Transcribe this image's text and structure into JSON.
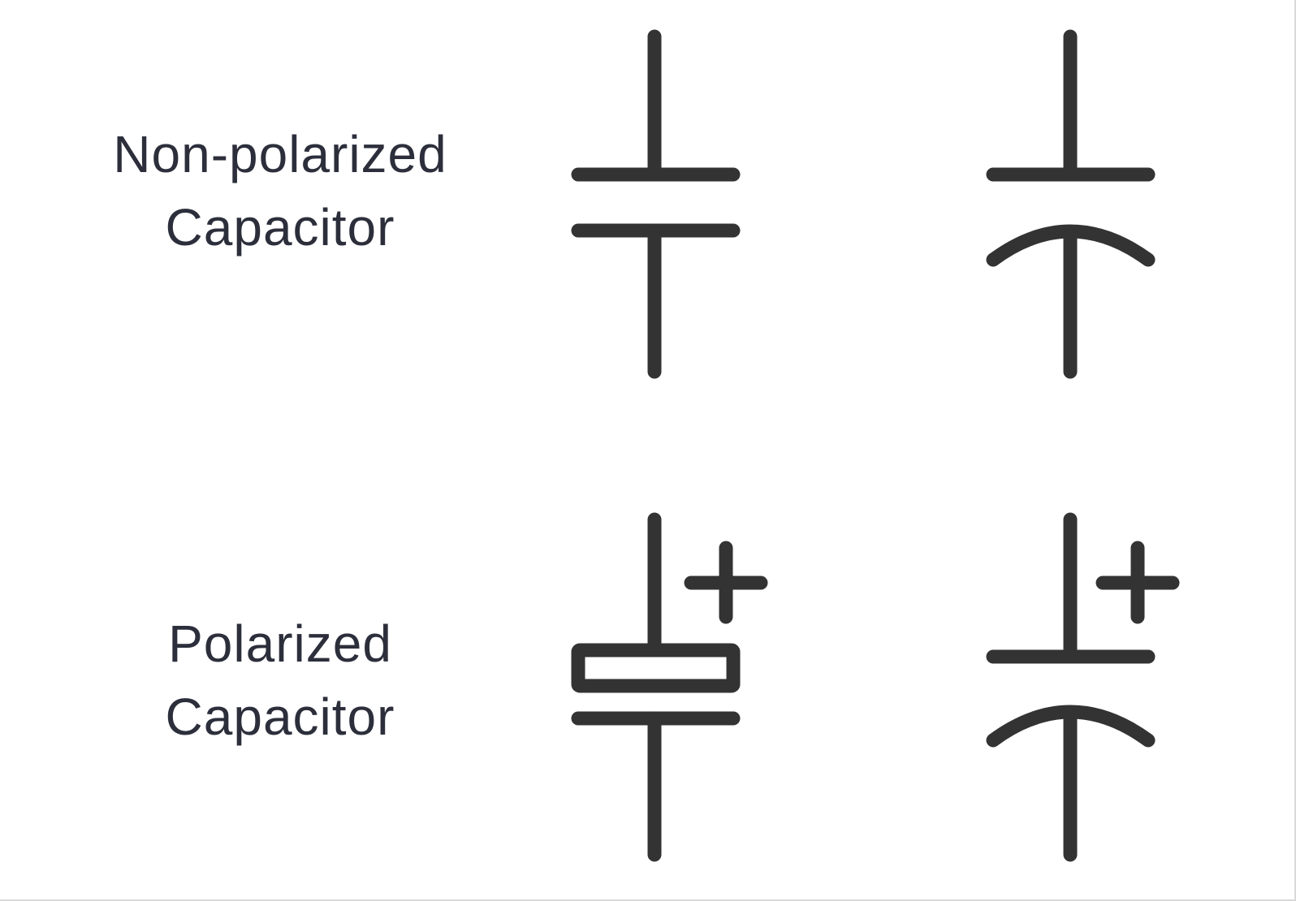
{
  "rows": [
    {
      "id": "nonpolarized",
      "label_line1": "Non-polarized",
      "label_line2": "Capacitor"
    },
    {
      "id": "polarized",
      "label_line1": "Polarized",
      "label_line2": "Capacitor"
    }
  ],
  "symbols": {
    "plus_sign": "+",
    "stroke_color": "#333333",
    "text_color": "#2c2f3b"
  }
}
